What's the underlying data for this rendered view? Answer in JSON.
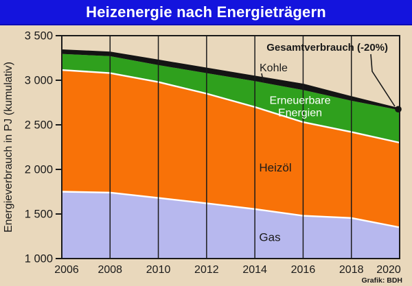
{
  "title": "Heizenergie nach Energieträgern",
  "credit": "Grafik: BDH",
  "colors": {
    "header_bg": "#1414dd",
    "header_text": "#ffffff",
    "background": "#e9d8bc",
    "gas": "#b7b8ee",
    "heizoel": "#f87208",
    "erneuerbare": "#2fa01d",
    "kohle": "#141414",
    "total_line": "#141414",
    "separator": "#ffffff",
    "axis_text": "#1a1a1a",
    "grid": "#1a1a1a",
    "area_label_dark": "#1a1a1a",
    "area_label_light": "#ffffff"
  },
  "chart_data": {
    "type": "area",
    "stacked": true,
    "title": "Heizenergie nach Energieträgern",
    "ylabel": "Energieverbrauch in PJ (kumulativ)",
    "xlabel": "",
    "unit": "PJ",
    "ylim": [
      1000,
      3500
    ],
    "grid": "vertical-only",
    "legend_position": "in-plot-labels",
    "x": [
      2006,
      2008,
      2010,
      2012,
      2014,
      2016,
      2018,
      2020
    ],
    "x_tick_labels": [
      "2006",
      "2008",
      "2010",
      "2012",
      "2014",
      "2016",
      "2018",
      "2020"
    ],
    "y_ticks": [
      1000,
      1500,
      2000,
      2500,
      3000,
      3500
    ],
    "y_tick_labels": [
      "1 000",
      "1 500",
      "2 000",
      "2 500",
      "3 000",
      "3 500"
    ],
    "series": [
      {
        "name": "Gas",
        "cumulative_top": [
          1750,
          1740,
          1680,
          1620,
          1555,
          1480,
          1455,
          1350
        ]
      },
      {
        "name": "Heizöl",
        "cumulative_top": [
          3115,
          3080,
          2980,
          2850,
          2700,
          2530,
          2420,
          2300
        ]
      },
      {
        "name": "Erneuerbare Energien",
        "cumulative_top": [
          3295,
          3270,
          3170,
          3080,
          2990,
          2890,
          2770,
          2665
        ]
      },
      {
        "name": "Kohle",
        "cumulative_top": [
          3335,
          3310,
          3220,
          3130,
          3040,
          2950,
          2810,
          2675
        ]
      }
    ],
    "total_line": {
      "label": "Gesamtverbrauch (-20%)",
      "values": [
        3335,
        3310,
        3220,
        3130,
        3040,
        2950,
        2810,
        2675
      ],
      "endpoint_year": 2020,
      "endpoint_value": 2675
    },
    "area_labels": {
      "gas": "Gas",
      "heizoel": "Heizöl",
      "erneuerbare_line1": "Erneuerbare",
      "erneuerbare_line2": "Energien",
      "kohle": "Kohle"
    }
  }
}
